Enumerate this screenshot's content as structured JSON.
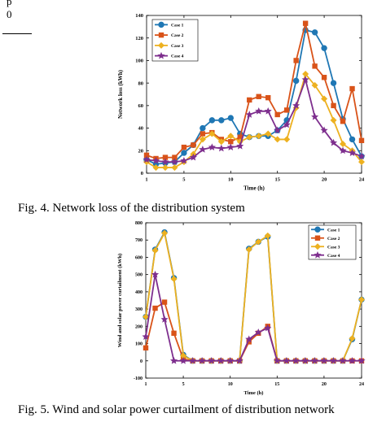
{
  "page": {
    "top_fragment": "p",
    "left_fragment": "0"
  },
  "chart_data": [
    {
      "type": "line",
      "xlabel": "Time (h)",
      "ylabel": "Network loss (kWh)",
      "xlim": [
        1,
        24
      ],
      "ylim": [
        0,
        140
      ],
      "xticks": [
        1,
        5,
        10,
        15,
        20,
        24
      ],
      "yticks": [
        0,
        20,
        40,
        60,
        80,
        100,
        120,
        140
      ],
      "legend_position": "top-left",
      "grid": false,
      "x": [
        1,
        2,
        3,
        4,
        5,
        6,
        7,
        8,
        9,
        10,
        11,
        12,
        13,
        14,
        15,
        16,
        17,
        18,
        19,
        20,
        21,
        22,
        23,
        24
      ],
      "series": [
        {
          "name": "Case 1",
          "color": "#1f77b4",
          "marker": "circle",
          "values": [
            12,
            8,
            9,
            10,
            18,
            25,
            40,
            47,
            47,
            49,
            35,
            32,
            33,
            33,
            38,
            47,
            82,
            127,
            125,
            111,
            80,
            48,
            30,
            15
          ]
        },
        {
          "name": "Case 2",
          "color": "#d95319",
          "marker": "square",
          "values": [
            16,
            13,
            14,
            14,
            23,
            25,
            35,
            36,
            30,
            28,
            32,
            65,
            68,
            67,
            52,
            56,
            100,
            133,
            95,
            85,
            60,
            46,
            75,
            29
          ]
        },
        {
          "name": "Case 3",
          "color": "#edb120",
          "marker": "diamond",
          "values": [
            10,
            5,
            5,
            5,
            10,
            17,
            30,
            35,
            28,
            33,
            28,
            32,
            33,
            35,
            30,
            30,
            58,
            88,
            78,
            66,
            47,
            26,
            20,
            10
          ]
        },
        {
          "name": "Case 4",
          "color": "#7e2f8e",
          "marker": "star",
          "values": [
            12,
            11,
            10,
            10,
            11,
            14,
            21,
            23,
            22,
            23,
            24,
            52,
            55,
            55,
            38,
            43,
            60,
            83,
            50,
            38,
            27,
            20,
            18,
            15
          ]
        }
      ],
      "caption": "Fig. 4. Network loss of the distribution system"
    },
    {
      "type": "line",
      "xlabel": "Time (h)",
      "ylabel": "Wind and solar power curtailment (kWh)",
      "xlim": [
        1,
        24
      ],
      "ylim": [
        -100,
        800
      ],
      "xticks": [
        1,
        5,
        10,
        15,
        20,
        24
      ],
      "yticks": [
        -100,
        0,
        100,
        200,
        300,
        400,
        500,
        600,
        700,
        800
      ],
      "legend_position": "top-right",
      "grid": false,
      "x": [
        1,
        2,
        3,
        4,
        5,
        6,
        7,
        8,
        9,
        10,
        11,
        12,
        13,
        14,
        15,
        16,
        17,
        18,
        19,
        20,
        21,
        22,
        23,
        24
      ],
      "series": [
        {
          "name": "Case 1",
          "color": "#1f77b4",
          "marker": "circle",
          "values": [
            255,
            645,
            745,
            480,
            35,
            0,
            0,
            0,
            0,
            0,
            0,
            650,
            690,
            720,
            0,
            0,
            0,
            0,
            0,
            0,
            0,
            0,
            125,
            355
          ]
        },
        {
          "name": "Case 2",
          "color": "#d95319",
          "marker": "square",
          "values": [
            75,
            305,
            340,
            160,
            10,
            0,
            0,
            0,
            0,
            0,
            0,
            110,
            160,
            200,
            0,
            0,
            0,
            0,
            0,
            0,
            0,
            0,
            0,
            0
          ]
        },
        {
          "name": "Case 3",
          "color": "#edb120",
          "marker": "diamond",
          "values": [
            255,
            640,
            740,
            475,
            30,
            0,
            0,
            0,
            0,
            0,
            0,
            645,
            690,
            725,
            0,
            0,
            0,
            0,
            0,
            0,
            0,
            0,
            130,
            355
          ]
        },
        {
          "name": "Case 4",
          "color": "#7e2f8e",
          "marker": "star",
          "values": [
            140,
            500,
            240,
            0,
            0,
            0,
            0,
            0,
            0,
            0,
            0,
            125,
            165,
            190,
            0,
            0,
            0,
            0,
            0,
            0,
            0,
            0,
            0,
            0
          ]
        }
      ],
      "caption": "Fig. 5. Wind and solar power curtailment of distribution network"
    }
  ]
}
